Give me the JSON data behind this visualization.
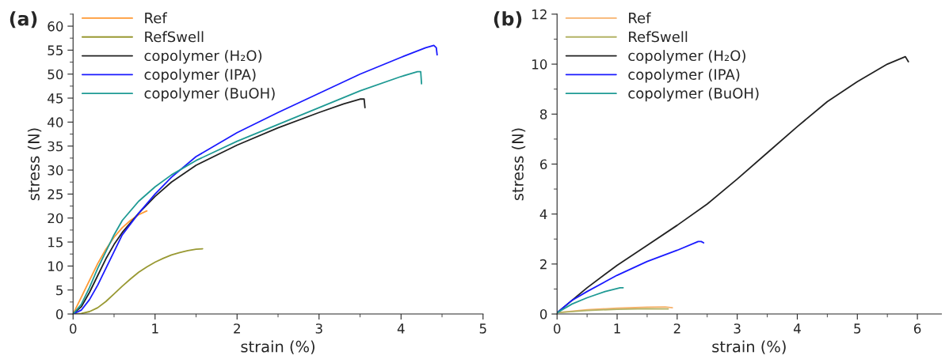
{
  "chart_data": [
    {
      "type": "line",
      "title": "(a)",
      "xlabel": "strain (%)",
      "ylabel": "stress (N)",
      "xlim": [
        0,
        5
      ],
      "ylim": [
        0,
        62.5
      ],
      "xticks": [
        0,
        1,
        2,
        3,
        4,
        5
      ],
      "yticks": [
        0,
        5,
        10,
        15,
        20,
        25,
        30,
        35,
        40,
        45,
        50,
        55,
        60
      ],
      "grid": false,
      "legend": "top left",
      "series": [
        {
          "name": "Ref",
          "color": "#ff9933",
          "x": [
            0,
            0.1,
            0.2,
            0.3,
            0.4,
            0.5,
            0.6,
            0.7,
            0.8,
            0.9
          ],
          "values": [
            0,
            3.5,
            7,
            10.5,
            13.5,
            16,
            18,
            19.5,
            20.7,
            21.5
          ]
        },
        {
          "name": "RefSwell",
          "color": "#999933",
          "x": [
            0,
            0.1,
            0.2,
            0.3,
            0.4,
            0.5,
            0.6,
            0.7,
            0.8,
            0.9,
            1.0,
            1.1,
            1.2,
            1.3,
            1.4,
            1.5,
            1.58
          ],
          "values": [
            0,
            0.1,
            0.5,
            1.3,
            2.6,
            4.2,
            5.8,
            7.3,
            8.7,
            9.8,
            10.8,
            11.6,
            12.3,
            12.8,
            13.2,
            13.5,
            13.6
          ]
        },
        {
          "name": "copolymer (H₂O)",
          "color": "#222222",
          "x": [
            0,
            0.1,
            0.2,
            0.3,
            0.4,
            0.5,
            0.6,
            0.8,
            1.0,
            1.2,
            1.5,
            2.0,
            2.5,
            3.0,
            3.3,
            3.5,
            3.55,
            3.56
          ],
          "values": [
            0,
            1.5,
            4.5,
            8,
            11.5,
            14.5,
            17,
            21,
            24.5,
            27.5,
            31,
            35.2,
            38.8,
            42,
            43.8,
            44.8,
            44.8,
            43
          ]
        },
        {
          "name": "copolymer (IPA)",
          "color": "#1a1aff",
          "x": [
            0,
            0.1,
            0.2,
            0.3,
            0.4,
            0.5,
            0.6,
            0.8,
            1.0,
            1.2,
            1.5,
            2.0,
            2.5,
            3.0,
            3.5,
            4.0,
            4.3,
            4.4,
            4.43,
            4.44
          ],
          "values": [
            0,
            0.8,
            3,
            6,
            9.5,
            13,
            16.5,
            21,
            25,
            28.5,
            32.8,
            37.8,
            42,
            46,
            50,
            53.5,
            55.5,
            56,
            55.5,
            54
          ]
        },
        {
          "name": "copolymer (BuOH)",
          "color": "#1f9a94",
          "x": [
            0,
            0.1,
            0.2,
            0.3,
            0.4,
            0.5,
            0.6,
            0.8,
            1.0,
            1.2,
            1.5,
            2.0,
            2.5,
            3.0,
            3.5,
            4.0,
            4.2,
            4.24,
            4.25
          ],
          "values": [
            0,
            2,
            5.5,
            9.5,
            13,
            16.5,
            19.5,
            23.5,
            26.5,
            29,
            32,
            36,
            39.5,
            43,
            46.5,
            49.5,
            50.5,
            50.5,
            48
          ]
        }
      ]
    },
    {
      "type": "line",
      "title": "(b)",
      "xlabel": "strain (%)",
      "ylabel": "stress (N)",
      "xlim": [
        0,
        6.4
      ],
      "ylim": [
        0,
        12
      ],
      "xticks": [
        0,
        1,
        2,
        3,
        4,
        5,
        6
      ],
      "yticks": [
        0,
        2,
        4,
        6,
        8,
        10,
        12
      ],
      "grid": false,
      "legend": "top left",
      "series": [
        {
          "name": "Ref",
          "color": "#f7b26b",
          "x": [
            0,
            0.5,
            1,
            1.5,
            1.8,
            1.92
          ],
          "values": [
            0.05,
            0.17,
            0.23,
            0.27,
            0.28,
            0.25
          ]
        },
        {
          "name": "RefSwell",
          "color": "#b3b366",
          "x": [
            0,
            0.5,
            1,
            1.5,
            1.85
          ],
          "values": [
            0.05,
            0.14,
            0.19,
            0.21,
            0.2
          ]
        },
        {
          "name": "copolymer (H₂O)",
          "color": "#222222",
          "x": [
            0,
            0.5,
            1,
            1.5,
            2,
            2.5,
            3,
            3.5,
            4,
            4.5,
            5,
            5.5,
            5.8,
            5.85
          ],
          "values": [
            0.05,
            1.05,
            1.95,
            2.75,
            3.55,
            4.4,
            5.4,
            6.45,
            7.5,
            8.5,
            9.3,
            10,
            10.3,
            10.1
          ]
        },
        {
          "name": "copolymer (IPA)",
          "color": "#1a1aff",
          "x": [
            0,
            0.25,
            0.5,
            1,
            1.5,
            2,
            2.35,
            2.4,
            2.44
          ],
          "values": [
            0.05,
            0.55,
            0.9,
            1.55,
            2.1,
            2.55,
            2.9,
            2.9,
            2.85
          ]
        },
        {
          "name": "copolymer (BuOH)",
          "color": "#1f9a94",
          "x": [
            0,
            0.25,
            0.5,
            0.8,
            1.05,
            1.1
          ],
          "values": [
            0.05,
            0.4,
            0.65,
            0.9,
            1.05,
            1.05
          ]
        }
      ]
    }
  ]
}
